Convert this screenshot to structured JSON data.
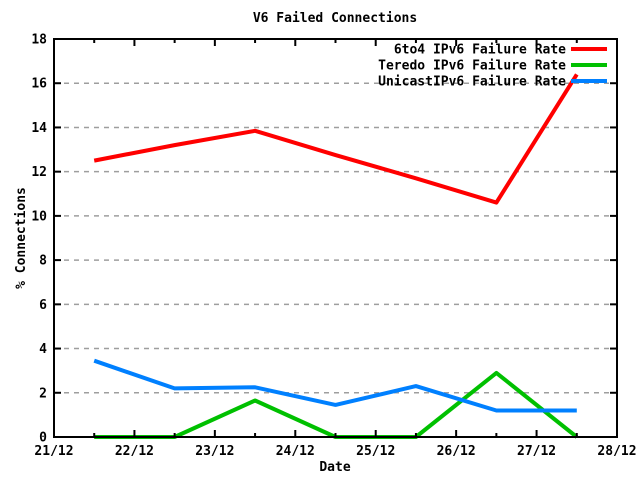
{
  "window": {
    "title": "V6 Failed Connections"
  },
  "chart_data": {
    "type": "line",
    "title": "V6 Failed Connections",
    "xlabel": "Date",
    "ylabel": "% Connections",
    "x_tick_labels": [
      "21/12",
      "22/12",
      "23/12",
      "24/12",
      "25/12",
      "26/12",
      "27/12",
      "28/12"
    ],
    "x_minor_tick_interval_days": 0.5,
    "y_ticks": [
      0,
      2,
      4,
      6,
      8,
      10,
      12,
      14,
      16,
      18
    ],
    "ylim": [
      0,
      18
    ],
    "xlim_days": [
      0,
      7
    ],
    "x_days": [
      0.5,
      1.5,
      2.5,
      3.5,
      4.5,
      5.5,
      6.5
    ],
    "grid": "horizontal-dashed",
    "grid_color": "#9e9e9e",
    "background_color": "#ffffff",
    "border_color": "#000000",
    "legend_position": "top-right-inside",
    "series": [
      {
        "name": "6to4 IPv6 Failure Rate",
        "color": "#ff0000",
        "values": [
          12.5,
          13.2,
          13.85,
          12.75,
          11.7,
          10.6,
          16.4
        ]
      },
      {
        "name": "Teredo IPv6 Failure Rate",
        "color": "#00c000",
        "values": [
          0,
          0,
          1.65,
          0,
          0,
          2.9,
          0
        ]
      },
      {
        "name": "UnicastIPv6 Failure Rate",
        "color": "#0080ff",
        "values": [
          3.45,
          2.2,
          2.25,
          1.45,
          2.3,
          1.2,
          1.2
        ]
      }
    ],
    "draw_order": [
      0,
      1,
      2
    ]
  }
}
